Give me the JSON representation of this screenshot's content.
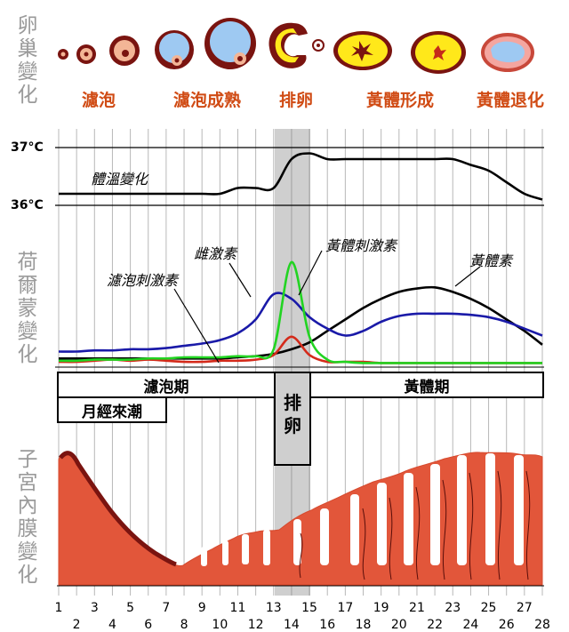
{
  "side_labels": {
    "ovary": "卵巢變化",
    "hormone": "荷爾蒙變化",
    "endometrium": "子宮內膜變化"
  },
  "ovary_stages": [
    "濾泡",
    "濾泡成熟",
    "排卵",
    "黃體形成",
    "黃體退化"
  ],
  "temperature": {
    "high_label": "37°C",
    "low_label": "36°C",
    "curve_label": "體溫變化"
  },
  "hormones": {
    "estrogen": "雌激素",
    "fsh": "濾泡刺激素",
    "lh": "黃體刺激素",
    "progesterone": "黃體素"
  },
  "phases": {
    "follicular": "濾泡期",
    "ovulation": "排卵",
    "luteal": "黃體期",
    "menstruation": "月經來潮"
  },
  "days": [
    "1",
    "2",
    "3",
    "4",
    "5",
    "6",
    "7",
    "8",
    "9",
    "10",
    "11",
    "12",
    "13",
    "14",
    "15",
    "16",
    "17",
    "18",
    "19",
    "20",
    "21",
    "22",
    "23",
    "24",
    "25",
    "26",
    "27",
    "28"
  ],
  "colors": {
    "estrogen": "#1a1aa8",
    "fsh": "#d42a1a",
    "lh": "#22d422",
    "progesterone": "#000000",
    "ovulation_band": "#cfcfcf",
    "endometrium": "#e2563a",
    "endometrium_dark": "#7a1410",
    "stage_text": "#d04b14",
    "side_text": "#9a9a9a"
  },
  "chart_data": {
    "type": "line",
    "x": [
      1,
      2,
      3,
      4,
      5,
      6,
      7,
      8,
      9,
      10,
      11,
      12,
      13,
      14,
      15,
      16,
      17,
      18,
      19,
      20,
      21,
      22,
      23,
      24,
      25,
      26,
      27,
      28
    ],
    "series": [
      {
        "name": "體溫變化",
        "values": [
          36.2,
          36.2,
          36.2,
          36.2,
          36.2,
          36.2,
          36.2,
          36.2,
          36.2,
          36.2,
          36.3,
          36.3,
          36.3,
          36.8,
          36.9,
          36.8,
          36.8,
          36.8,
          36.8,
          36.8,
          36.8,
          36.8,
          36.8,
          36.7,
          36.6,
          36.4,
          36.2,
          36.1
        ]
      },
      {
        "name": "雌激素",
        "values": [
          12,
          12,
          13,
          13,
          14,
          14,
          15,
          17,
          19,
          22,
          28,
          40,
          62,
          58,
          42,
          32,
          26,
          30,
          38,
          43,
          45,
          45,
          45,
          44,
          42,
          38,
          32,
          26
        ]
      },
      {
        "name": "濾泡刺激素",
        "values": [
          3,
          3,
          4,
          5,
          4,
          5,
          4,
          3,
          3,
          4,
          4,
          5,
          9,
          25,
          9,
          3,
          3,
          3,
          2,
          2,
          2,
          2,
          2,
          2,
          2,
          2,
          2,
          2
        ]
      },
      {
        "name": "黃體刺激素",
        "values": [
          4,
          4,
          5,
          5,
          5,
          6,
          6,
          7,
          7,
          7,
          8,
          8,
          14,
          90,
          25,
          5,
          3,
          2,
          2,
          2,
          2,
          2,
          2,
          2,
          2,
          2,
          2,
          2
        ]
      },
      {
        "name": "黃體素",
        "values": [
          6,
          6,
          6,
          6,
          6,
          6,
          6,
          6,
          6,
          6,
          7,
          8,
          10,
          14,
          20,
          30,
          40,
          50,
          58,
          64,
          67,
          68,
          64,
          58,
          50,
          40,
          30,
          18
        ]
      }
    ]
  }
}
